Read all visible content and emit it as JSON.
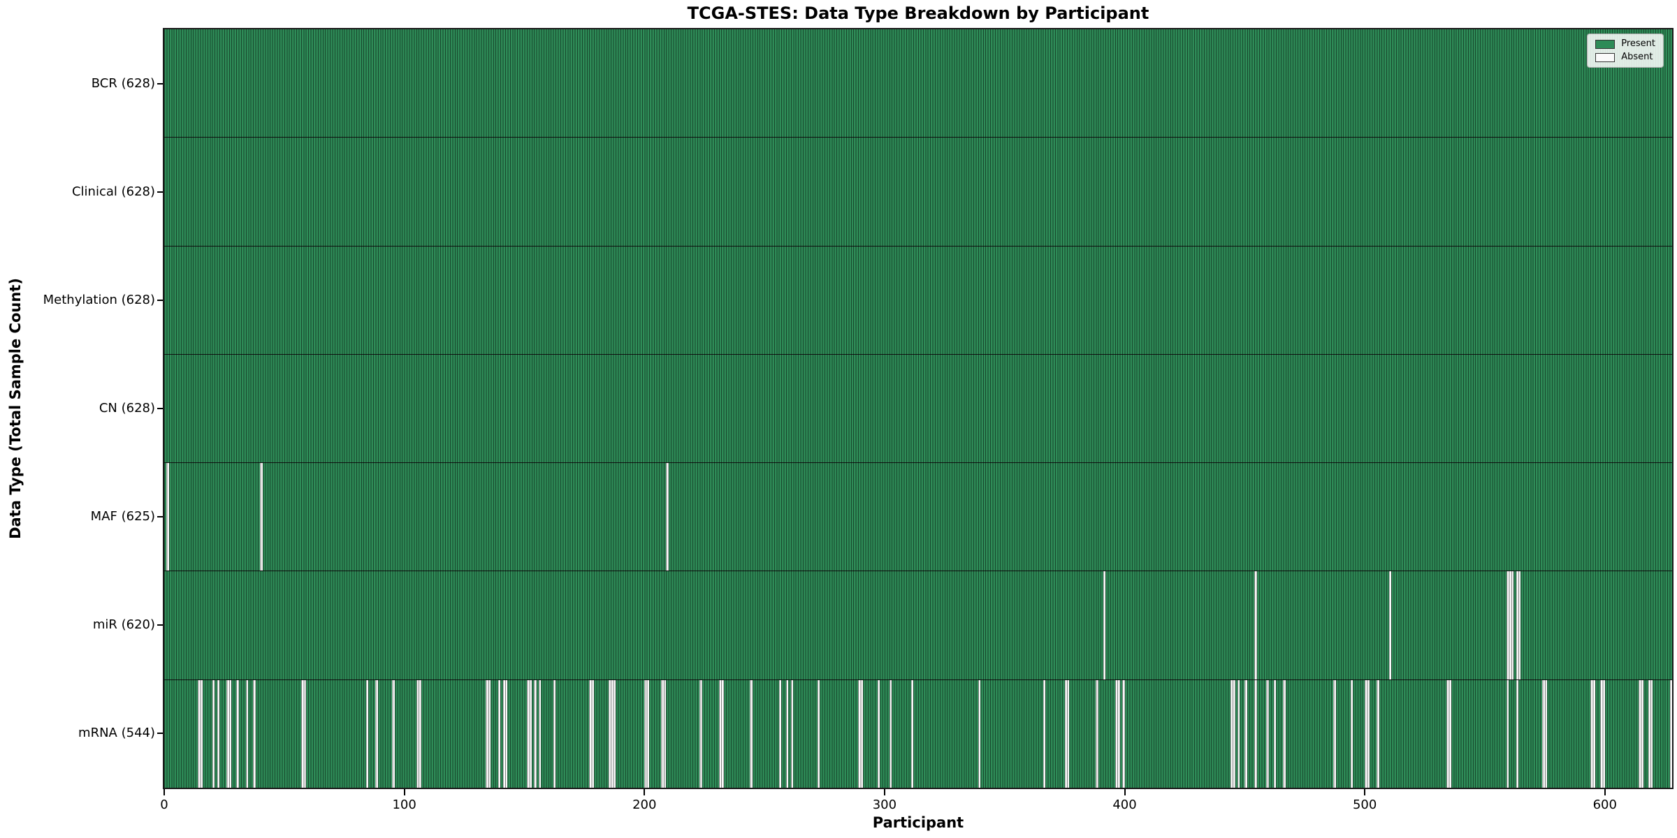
{
  "figure": {
    "title": "TCGA-STES: Data Type Breakdown by Participant",
    "xlabel": "Participant",
    "ylabel": "Data Type (Total Sample Count)"
  },
  "legend": {
    "items": [
      {
        "label": "Present",
        "color": "#2e8b57"
      },
      {
        "label": "Absent",
        "color": "#fafafa"
      }
    ]
  },
  "chart_data": {
    "type": "heatmap",
    "title": "TCGA-STES: Data Type Breakdown by Participant",
    "xlabel": "Participant",
    "ylabel": "Data Type (Total Sample Count)",
    "legend_position": "upper right",
    "n_participants": 628,
    "x_ticks": [
      0,
      100,
      200,
      300,
      400,
      500,
      600
    ],
    "x_range": [
      0,
      628
    ],
    "colors": {
      "present": "#2e8b57",
      "absent": "#fafafa",
      "bar_edge": "rgba(0,0,0,0.5)",
      "row_separator": "#111111"
    },
    "rows": [
      {
        "name": "BCR",
        "label": "BCR (628)",
        "count": 628,
        "absent_participants": []
      },
      {
        "name": "Clinical",
        "label": "Clinical (628)",
        "count": 628,
        "absent_participants": []
      },
      {
        "name": "Methylation",
        "label": "Methylation (628)",
        "count": 628,
        "absent_participants": []
      },
      {
        "name": "CN",
        "label": "CN (628)",
        "count": 628,
        "absent_participants": []
      },
      {
        "name": "MAF",
        "label": "MAF (625)",
        "count": 625,
        "absent_participants": [
          1,
          40,
          209
        ]
      },
      {
        "name": "miR",
        "label": "miR (620)",
        "count": 620,
        "absent_participants": [
          391,
          454,
          510,
          559,
          560,
          561,
          563,
          564
        ]
      },
      {
        "name": "mRNA",
        "label": "mRNA (544)",
        "count": 544,
        "absent_participants": [
          14,
          15,
          20,
          22,
          26,
          27,
          30,
          34,
          37,
          57,
          58,
          84,
          88,
          95,
          105,
          106,
          134,
          135,
          139,
          141,
          142,
          151,
          152,
          154,
          156,
          162,
          177,
          178,
          185,
          186,
          187,
          200,
          201,
          207,
          208,
          223,
          231,
          232,
          244,
          256,
          259,
          261,
          272,
          289,
          290,
          297,
          302,
          311,
          339,
          366,
          375,
          376,
          388,
          396,
          397,
          399,
          444,
          445,
          447,
          450,
          454,
          459,
          462,
          466,
          487,
          494,
          500,
          501,
          505,
          534,
          535,
          559,
          563,
          574,
          575,
          594,
          595,
          598,
          599,
          614,
          615,
          618,
          619,
          627
        ]
      }
    ]
  }
}
